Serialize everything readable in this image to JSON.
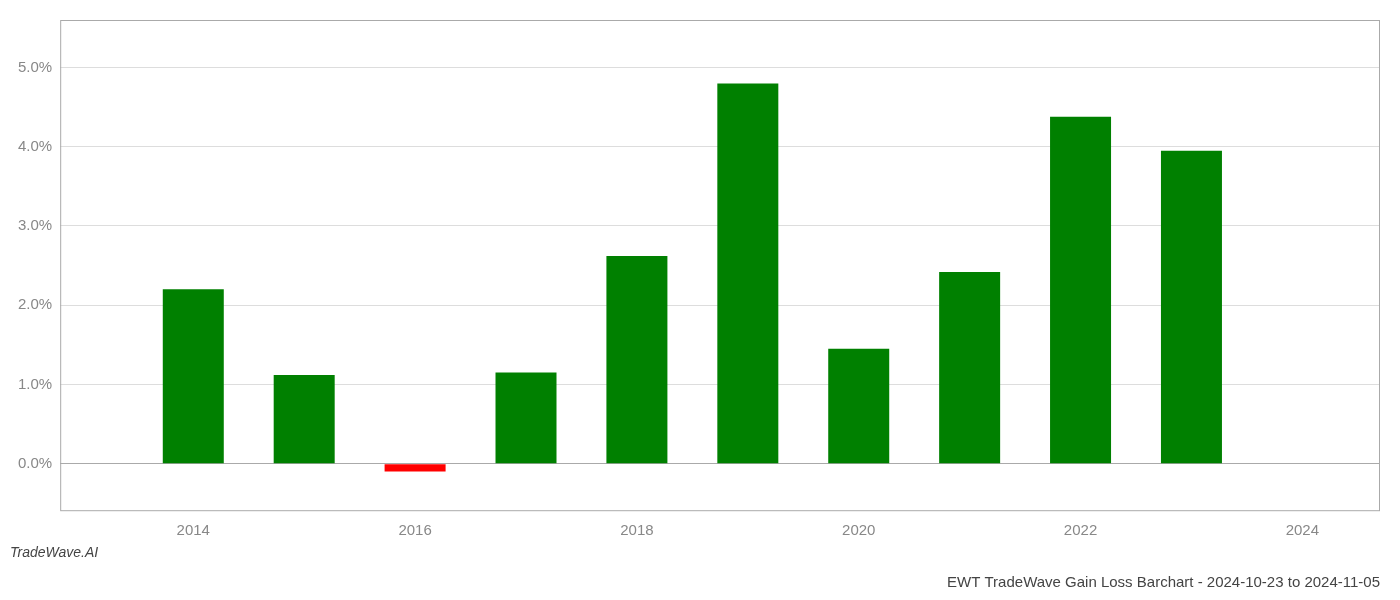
{
  "chart_data": {
    "type": "bar",
    "title": "EWT TradeWave Gain Loss Barchart - 2024-10-23 to 2024-11-05",
    "annotations": [
      "TradeWave.AI"
    ],
    "x": [
      2014,
      2015,
      2016,
      2017,
      2018,
      2019,
      2020,
      2021,
      2022,
      2023
    ],
    "values": [
      0.022,
      0.0112,
      -0.001,
      0.0115,
      0.0262,
      0.048,
      0.0145,
      0.0242,
      0.0438,
      0.0395
    ],
    "colors": [
      "#008000",
      "#008000",
      "#FF0000",
      "#008000",
      "#008000",
      "#008000",
      "#008000",
      "#008000",
      "#008000",
      "#008000"
    ],
    "xlim": [
      2012.8,
      2024.7
    ],
    "xticks": [
      2014,
      2016,
      2018,
      2020,
      2022,
      2024
    ],
    "ylim": [
      -0.006,
      0.056
    ],
    "yticks": [
      {
        "value": 0.0,
        "label": "0.0%"
      },
      {
        "value": 0.01,
        "label": "1.0%"
      },
      {
        "value": 0.02,
        "label": "2.0%"
      },
      {
        "value": 0.03,
        "label": "3.0%"
      },
      {
        "value": 0.04,
        "label": "4.0%"
      },
      {
        "value": 0.05,
        "label": "5.0%"
      }
    ],
    "grid": true
  }
}
